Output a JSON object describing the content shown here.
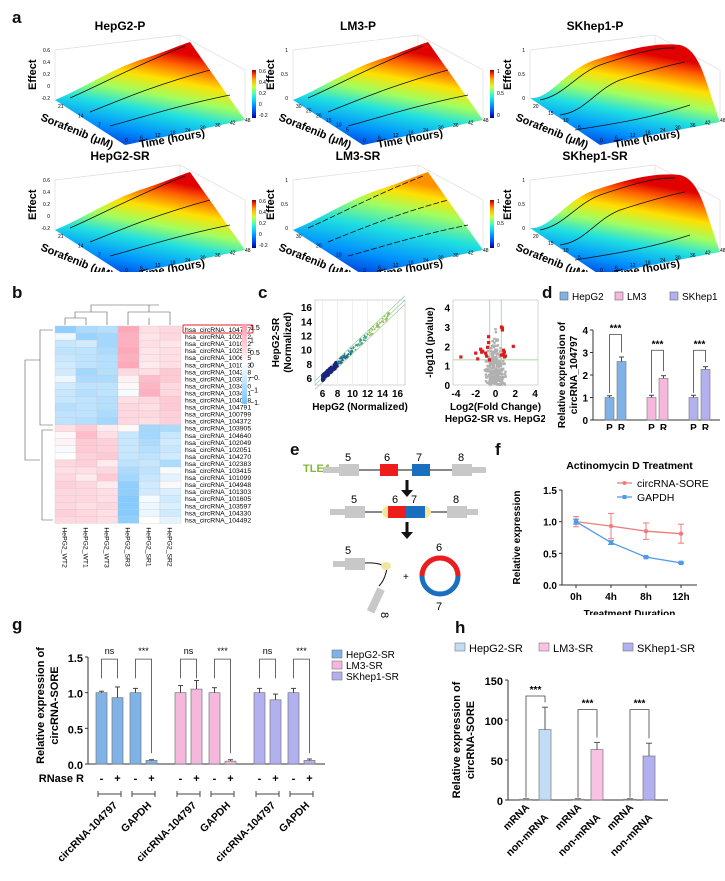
{
  "panels": {
    "a": "a",
    "b": "b",
    "c": "c",
    "d": "d",
    "e": "e",
    "f": "f",
    "g": "g",
    "h": "h"
  },
  "chart_data": [
    {
      "panel": "a",
      "type": "surface3d",
      "zlabel": "Effect",
      "ylabel": "Sorafenib (μM)",
      "xlabel": "Time (hours)",
      "xticks": [
        "0",
        "6",
        "12",
        "18",
        "24",
        "30",
        "36",
        "42",
        "48"
      ],
      "plots": [
        {
          "title": "HepG2-P",
          "zticks": [
            "-0.2",
            "0",
            "0.2",
            "0.4",
            "0.6"
          ],
          "yticks": [
            "7",
            "14",
            "21"
          ],
          "colorbar_ticks": [
            "0.6",
            "0.4",
            "0.2",
            "0",
            "-0.2"
          ],
          "shape": "linear"
        },
        {
          "title": "LM3-P",
          "zticks": [
            "0",
            "0.5",
            "1"
          ],
          "yticks": [
            "5",
            "10",
            "15",
            "20",
            "25",
            "30"
          ],
          "colorbar_ticks": [
            "1",
            "0.5",
            "0"
          ],
          "shape": "linear"
        },
        {
          "title": "SKhep1-P",
          "zticks": [
            "0",
            "0.5",
            "1"
          ],
          "yticks": [
            "5",
            "10",
            "15",
            "20"
          ],
          "colorbar_ticks": [
            "1",
            "0.5",
            "0"
          ],
          "shape": "sigmoid"
        },
        {
          "title": "HepG2-SR",
          "zticks": [
            "-0.2",
            "0",
            "0.2",
            "0.4",
            "0.6"
          ],
          "yticks": [
            "7",
            "14",
            "21"
          ],
          "colorbar_ticks": [
            "0.6",
            "0.4",
            "0.2",
            "0",
            "-0.2"
          ],
          "shape": "linear"
        },
        {
          "title": "LM3-SR",
          "zticks": [
            "0",
            "0.5",
            "1"
          ],
          "yticks": [
            "10",
            "20",
            "30"
          ],
          "colorbar_ticks": [
            "1",
            "0.5",
            "0"
          ],
          "shape": "linear"
        },
        {
          "title": "SKhep1-SR",
          "zticks": [
            "0",
            "0.5",
            "1"
          ],
          "yticks": [
            "5",
            "10",
            "15",
            "20"
          ],
          "colorbar_ticks": [
            "1",
            "0.5",
            "0"
          ],
          "shape": "sigmoid"
        }
      ]
    },
    {
      "panel": "b",
      "type": "heatmap",
      "columns": [
        "HePG2_WT2",
        "HePG2_WT1",
        "HePG2_WT3",
        "HePG2_SR3",
        "HePG2_SR1",
        "HePG2_SR2"
      ],
      "rows": [
        "hsa_circRNA_104797",
        "hsa_circRNA_102092",
        "hsa_circRNA_101002",
        "hsa_circRNA_102595",
        "hsa_circRNA_100665",
        "hsa_circRNA_101003",
        "hsa_circRNA_104268",
        "hsa_circRNA_103087",
        "hsa_circRNA_103420",
        "hsa_circRNA_103421",
        "hsa_circRNA_104038",
        "hsa_circRNA_104791",
        "hsa_circRNA_100799",
        "hsa_circRNA_104372",
        "hsa_circRNA_103905",
        "hsa_circRNA_104640",
        "hsa_circRNA_102049",
        "hsa_circRNA_102051",
        "hsa_circRNA_104270",
        "hsa_circRNA_102383",
        "hsa_circRNA_103415",
        "hsa_circRNA_101099",
        "hsa_circRNA_104948",
        "hsa_circRNA_101303",
        "hsa_circRNA_101605",
        "hsa_circRNA_103597",
        "hsa_circRNA_104330",
        "hsa_circRNA_104492"
      ],
      "values": [
        [
          -1.2,
          -0.9,
          -0.8,
          1.3,
          0.5,
          0.6
        ],
        [
          -0.2,
          -1.1,
          -1.0,
          1.2,
          0.4,
          0.6
        ],
        [
          -0.6,
          -0.5,
          -1.0,
          1.2,
          0.5,
          0.4
        ],
        [
          -0.7,
          -0.7,
          -0.9,
          1.3,
          0.4,
          0.5
        ],
        [
          -0.6,
          -0.7,
          -0.8,
          1.2,
          0.4,
          0.5
        ],
        [
          -0.5,
          -0.7,
          -0.8,
          1.3,
          0.3,
          0.5
        ],
        [
          -0.5,
          -1.0,
          -0.8,
          0.6,
          0.5,
          0.8
        ],
        [
          -0.2,
          -0.9,
          -0.9,
          0.2,
          1.0,
          0.8
        ],
        [
          -0.5,
          -0.7,
          -0.7,
          0.1,
          1.1,
          0.6
        ],
        [
          -0.6,
          -0.8,
          -0.7,
          -0.1,
          1.2,
          0.6
        ],
        [
          -0.6,
          -0.7,
          -0.8,
          0.5,
          0.6,
          0.8
        ],
        [
          -0.8,
          -0.7,
          -0.8,
          0.6,
          0.5,
          0.8
        ],
        [
          -0.7,
          -0.7,
          -0.9,
          0.6,
          0.6,
          0.7
        ],
        [
          -0.7,
          -0.8,
          -1.0,
          0.6,
          0.5,
          0.7
        ],
        [
          0.5,
          0.8,
          0.3,
          0.1,
          -1.0,
          -0.9
        ],
        [
          0.1,
          1.0,
          0.5,
          -0.6,
          -1.0,
          -0.6
        ],
        [
          0.2,
          0.8,
          0.7,
          -0.6,
          -0.9,
          -0.5
        ],
        [
          -0.1,
          0.8,
          0.7,
          -0.6,
          -0.8,
          -0.6
        ],
        [
          0.0,
          0.7,
          0.8,
          -0.6,
          -0.7,
          -0.5
        ],
        [
          0.6,
          0.7,
          0.3,
          -0.7,
          -0.6,
          -0.9
        ],
        [
          0.5,
          0.5,
          0.6,
          -0.9,
          -0.7,
          -0.1
        ],
        [
          0.6,
          0.3,
          0.8,
          -1.0,
          -0.6,
          -0.3
        ],
        [
          0.7,
          0.6,
          0.3,
          -1.2,
          -0.5,
          0.1
        ],
        [
          0.6,
          0.6,
          0.5,
          -1.2,
          -0.5,
          -0.4
        ],
        [
          0.6,
          0.6,
          0.5,
          -1.3,
          -0.1,
          -0.5
        ],
        [
          0.6,
          0.5,
          0.6,
          -1.3,
          -0.2,
          -0.4
        ],
        [
          0.7,
          0.6,
          0.5,
          -1.3,
          -0.2,
          -0.5
        ],
        [
          0.6,
          0.6,
          0.5,
          -1.2,
          0.0,
          -0.3
        ]
      ],
      "highlight_row": "hsa_circRNA_104797",
      "colorbar_ticks": [
        "1.5",
        "1",
        "0.5",
        "0",
        "−0.5",
        "−1",
        "−1.5"
      ],
      "range": [
        -1.5,
        1.5
      ]
    },
    {
      "panel": "c-scatter",
      "type": "scatter",
      "xlabel": "HepG2 (Normalized)",
      "ylabel": "HepG2-SR\n(Normalized)",
      "xticks": [
        "6",
        "8",
        "10",
        "12",
        "14",
        "16"
      ],
      "yticks": [
        "6",
        "8",
        "10",
        "12",
        "14",
        "16"
      ],
      "xlim": [
        5,
        17
      ],
      "ylim": [
        5,
        17
      ]
    },
    {
      "panel": "c-volcano",
      "type": "scatter",
      "xlabel": "Log2(Fold Change)",
      "subtitle": "HepG2-SR vs. HepG2",
      "ylabel": "-log10 (pvalue)",
      "xticks": [
        "-4",
        "-2",
        "0",
        "2",
        "4"
      ],
      "yticks": [
        "0",
        "1",
        "2",
        "3",
        "4"
      ],
      "xlim": [
        -4.3,
        4.3
      ],
      "ylim": [
        0,
        4.4
      ],
      "fc_threshold": [
        -0.58,
        0.58
      ],
      "p_threshold": 1.3,
      "significant_points": [
        [
          -3.5,
          1.45
        ],
        [
          -2.0,
          1.65
        ],
        [
          -1.8,
          1.35
        ],
        [
          -1.5,
          1.85
        ],
        [
          -1.4,
          1.7
        ],
        [
          -1.3,
          1.75
        ],
        [
          -1.0,
          1.65
        ],
        [
          -0.9,
          1.5
        ],
        [
          -0.8,
          1.95
        ],
        [
          -0.7,
          2.2
        ],
        [
          -0.7,
          2.5
        ],
        [
          -0.6,
          1.3
        ],
        [
          0.6,
          3.0
        ],
        [
          0.7,
          2.85
        ],
        [
          0.7,
          2.95
        ],
        [
          0.8,
          1.8
        ],
        [
          0.8,
          1.6
        ],
        [
          0.9,
          1.7
        ],
        [
          0.9,
          1.45
        ],
        [
          1.0,
          1.5
        ],
        [
          1.8,
          2.0
        ],
        [
          0.6,
          1.55
        ]
      ]
    },
    {
      "panel": "d",
      "type": "bar",
      "ylabel": "Relative expression of\ncircRNA_104797",
      "yticks": [
        "0",
        "1",
        "2",
        "3",
        "4"
      ],
      "ylim": [
        0,
        4
      ],
      "categories": [
        "P",
        "R",
        "P",
        "R",
        "P",
        "R"
      ],
      "series": [
        {
          "name": "HepG2",
          "values": [
            1.0,
            2.6
          ],
          "errors": [
            0.08,
            0.2
          ],
          "color": "#7fb3e8"
        },
        {
          "name": "LM3",
          "values": [
            1.0,
            1.85
          ],
          "errors": [
            0.1,
            0.12
          ],
          "color": "#f5b8dc"
        },
        {
          "name": "SKhep1",
          "values": [
            1.0,
            2.25
          ],
          "errors": [
            0.1,
            0.12
          ],
          "color": "#b3b0f0"
        }
      ],
      "significance": [
        "***",
        "***",
        "***"
      ]
    },
    {
      "panel": "e",
      "type": "diagram",
      "gene_label": "TLE4",
      "exons": [
        "5",
        "6",
        "7",
        "8"
      ]
    },
    {
      "panel": "f",
      "type": "line",
      "title": "Actinomycin D Treatment",
      "xlabel": "Treatment Duration",
      "ylabel": "Relative expression",
      "categories": [
        "0h",
        "4h",
        "8h",
        "12h"
      ],
      "yticks": [
        "0.0",
        "0.5",
        "1.0",
        "1.5"
      ],
      "ylim": [
        0,
        1.5
      ],
      "series": [
        {
          "name": "circRNA-SORE",
          "values": [
            1.0,
            0.93,
            0.85,
            0.81
          ],
          "errors": [
            0.08,
            0.2,
            0.13,
            0.15
          ],
          "color": "#f07c7c"
        },
        {
          "name": "GAPDH",
          "values": [
            1.0,
            0.67,
            0.44,
            0.35
          ],
          "errors": [
            0.04,
            0.03,
            0.01,
            0.01
          ],
          "color": "#4f9be8"
        }
      ]
    },
    {
      "panel": "g",
      "type": "bar",
      "ylabel": "Relative expression of\ncircRNA-SORE",
      "yticks": [
        "0.0",
        "0.5",
        "1.0",
        "1.5"
      ],
      "ylim": [
        0,
        1.5
      ],
      "rnase_label": "RNase R",
      "rnase_signs": [
        "-",
        "+",
        "-",
        "+"
      ],
      "group_labels": [
        "circRNA-104797",
        "GAPDH"
      ],
      "series": [
        {
          "name": "HepG2-SR",
          "values": [
            1.0,
            0.93,
            1.0,
            0.05
          ],
          "errors": [
            0.02,
            0.15,
            0.06,
            0.01
          ],
          "color": "#7fb3e8"
        },
        {
          "name": "LM3-SR",
          "values": [
            1.0,
            1.05,
            1.0,
            0.04
          ],
          "errors": [
            0.1,
            0.12,
            0.07,
            0.02
          ],
          "color": "#f5b8dc"
        },
        {
          "name": "SKhep1-SR",
          "values": [
            1.0,
            0.9,
            1.0,
            0.05
          ],
          "errors": [
            0.06,
            0.08,
            0.06,
            0.02
          ],
          "color": "#b3b0f0"
        }
      ],
      "significance": [
        "ns",
        "***",
        "ns",
        "***",
        "ns",
        "***"
      ]
    },
    {
      "panel": "h",
      "type": "bar",
      "ylabel": "Relative expression of\ncircRNA-SORE",
      "yticks": [
        "0",
        "50",
        "100",
        "150"
      ],
      "ylim": [
        0,
        150
      ],
      "categories": [
        "mRNA",
        "non-mRNA"
      ],
      "series": [
        {
          "name": "HepG2-SR",
          "values": [
            1,
            88
          ],
          "errors": [
            0.5,
            28
          ],
          "color": "#c2dcf5"
        },
        {
          "name": "LM3-SR",
          "values": [
            1,
            63
          ],
          "errors": [
            0.5,
            9
          ],
          "color": "#f9c2e2"
        },
        {
          "name": "SKhep1-SR",
          "values": [
            1,
            55
          ],
          "errors": [
            0.5,
            16
          ],
          "color": "#b3b0f0"
        }
      ],
      "significance": [
        "***",
        "***",
        "***"
      ]
    }
  ]
}
